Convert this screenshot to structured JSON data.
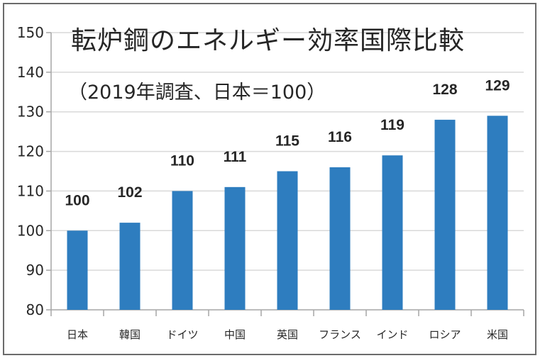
{
  "chart_data": {
    "type": "bar",
    "title": "転炉鋼のエネルギー効率国際比較",
    "subtitle": "（2019年調査、日本＝100）",
    "xlabel": "",
    "ylabel": "",
    "categories": [
      "日本",
      "韓国",
      "ドイツ",
      "中国",
      "英国",
      "フランス",
      "インド",
      "ロシア",
      "米国"
    ],
    "values": [
      100,
      102,
      110,
      111,
      115,
      116,
      119,
      128,
      129
    ],
    "data_labels": [
      "100",
      "102",
      "110",
      "111",
      "115",
      "116",
      "119",
      "128",
      "129"
    ],
    "ylim": [
      80,
      150
    ],
    "yticks": [
      80,
      90,
      100,
      110,
      120,
      130,
      140,
      150
    ],
    "grid": true,
    "legend": "none",
    "colors": {
      "bar": "#2e7dbf",
      "grid": "#d9d9d9",
      "axis": "#a6a6a6",
      "text": "#262626",
      "border": "#6b6b6b"
    }
  }
}
